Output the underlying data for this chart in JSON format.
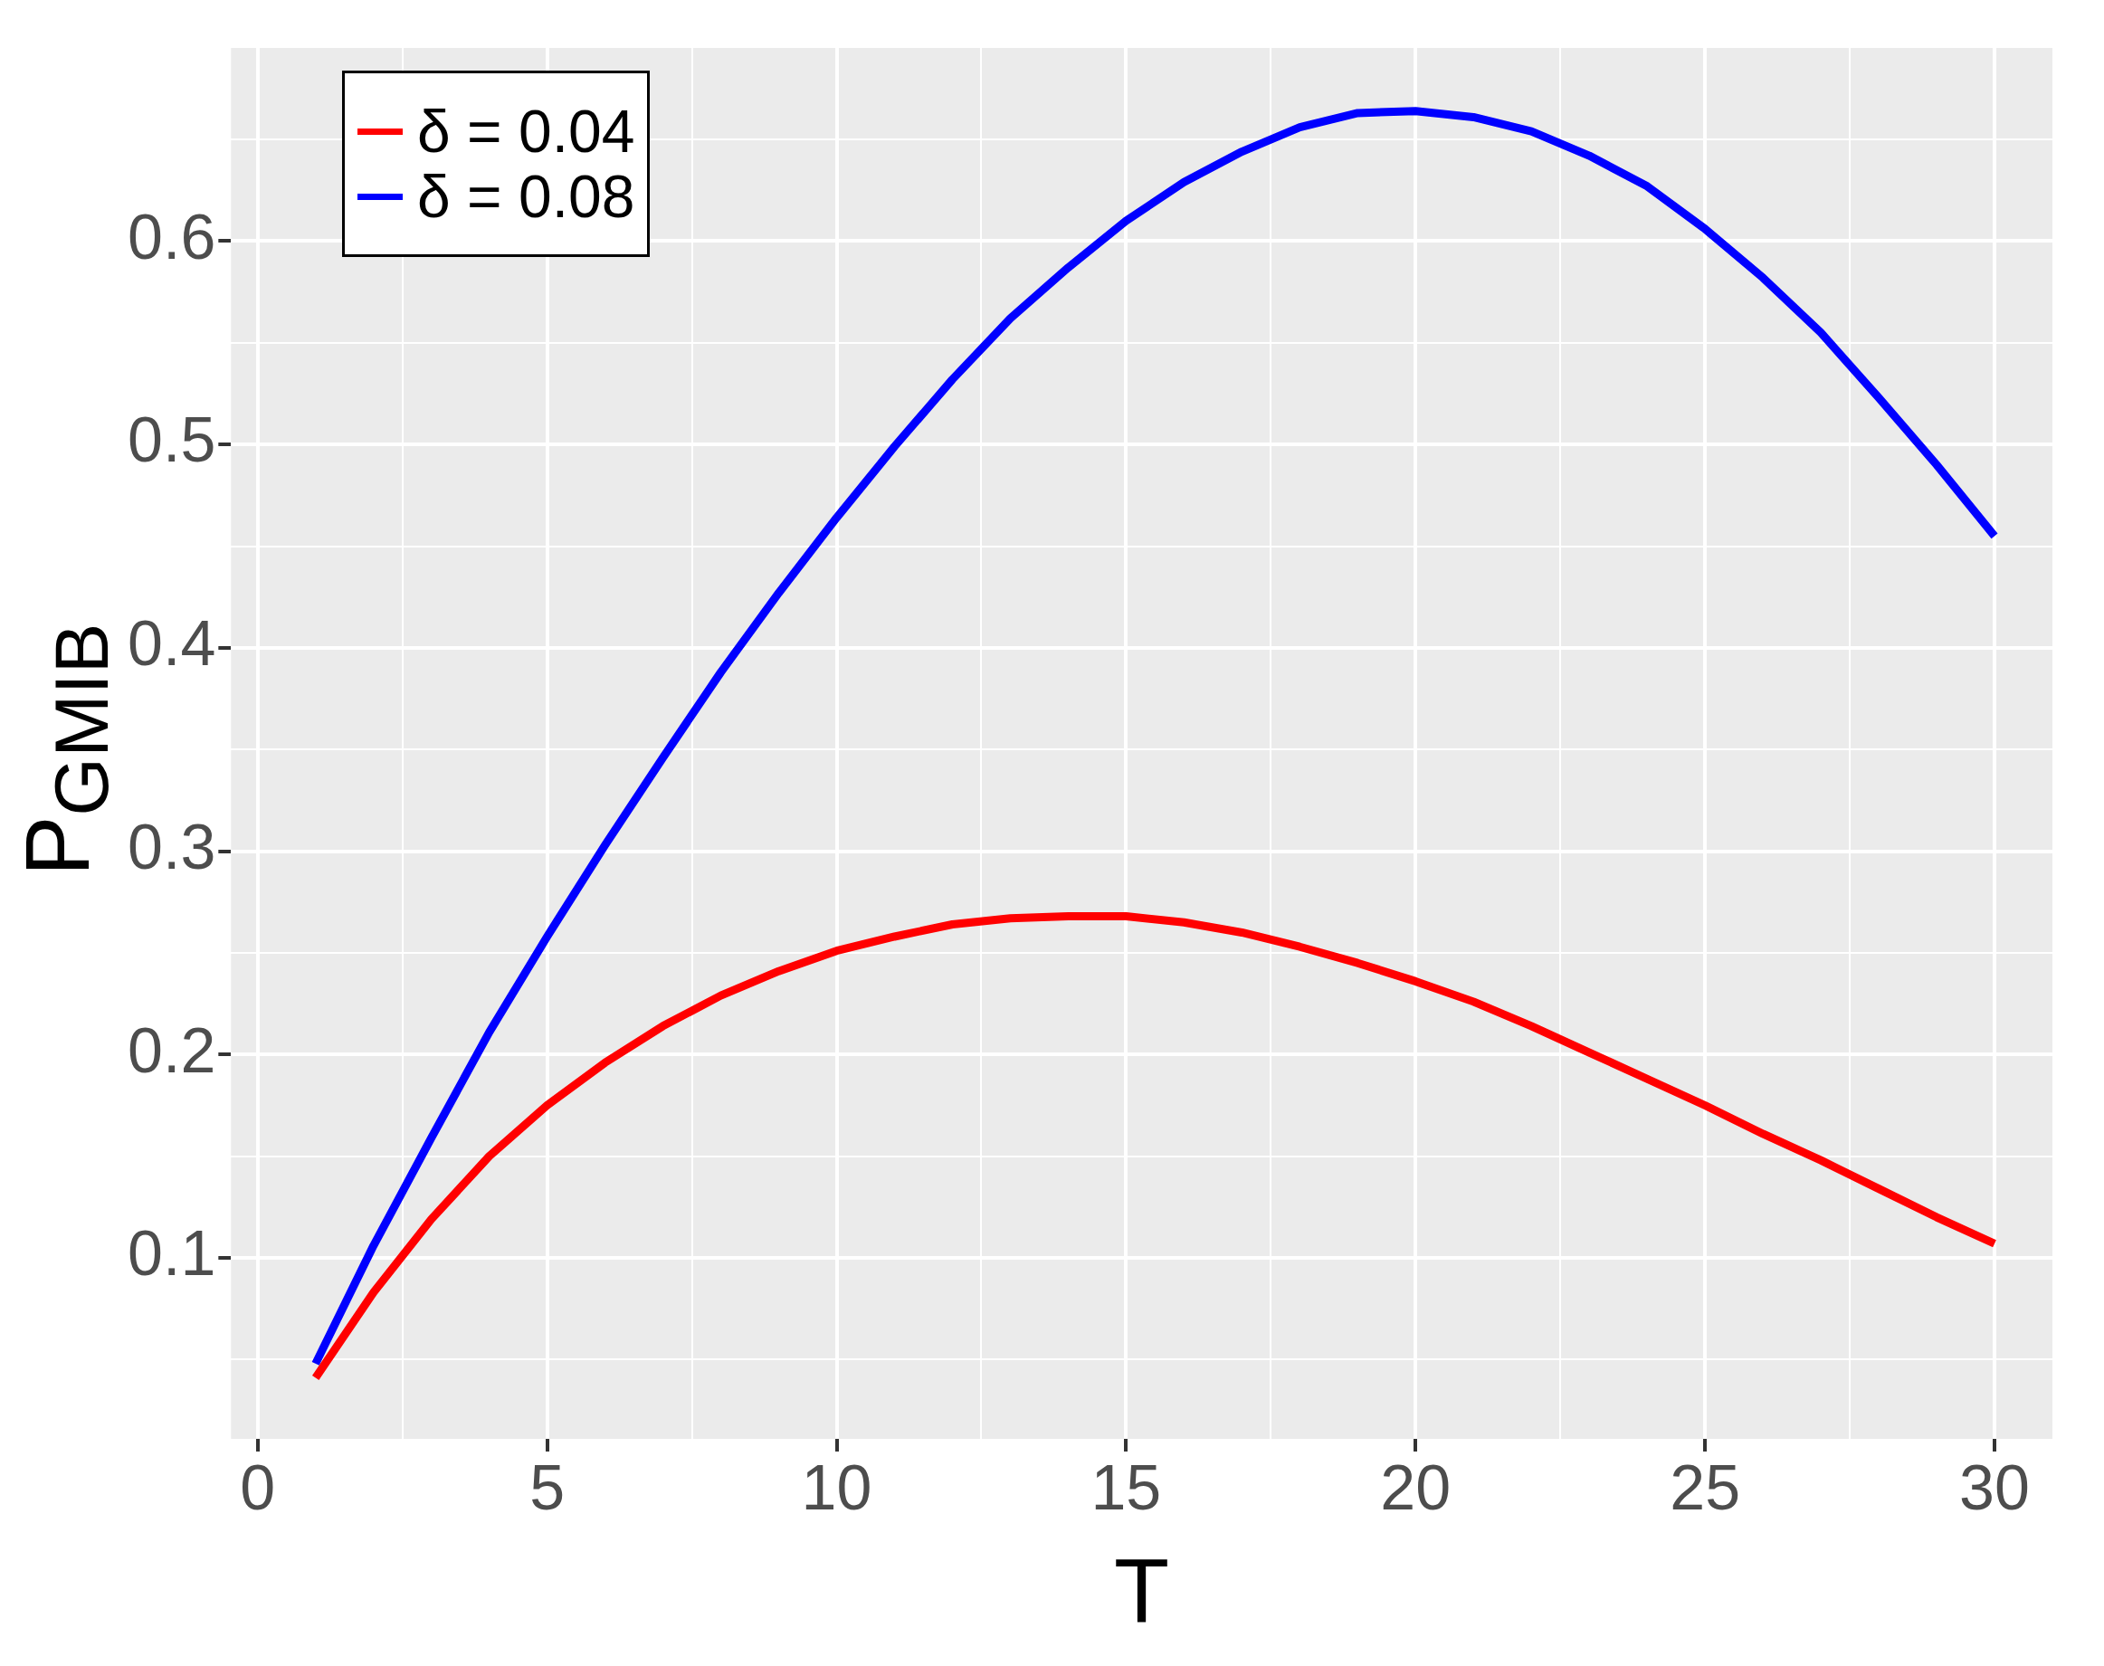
{
  "chart_data": {
    "type": "line",
    "xlabel": "T",
    "ylabel": "P$_{GMIB}$",
    "legend": "top left",
    "grid": true,
    "x": [
      1,
      2,
      3,
      4,
      5,
      6,
      7,
      8,
      9,
      10,
      11,
      12,
      13,
      14,
      15,
      16,
      17,
      18,
      19,
      20,
      21,
      22,
      23,
      24,
      25,
      26,
      27,
      28,
      29,
      30
    ],
    "xlim": [
      -0.46,
      31
    ],
    "xticks": [
      0,
      {
        "value": 2.5,
        "label": null
      },
      5,
      {
        "value": 7.5,
        "label": null
      },
      10,
      {
        "value": 12.5,
        "label": null
      },
      15,
      {
        "value": 17.5,
        "label": null
      },
      20,
      {
        "value": 22.5,
        "label": null
      },
      25,
      {
        "value": 27.5,
        "label": null
      },
      30
    ],
    "ylim": [
      0.011,
      0.695
    ],
    "yticks": [
      {
        "value": 0.05,
        "label": null
      },
      0.1,
      {
        "value": 0.15,
        "label": null
      },
      0.2,
      {
        "value": 0.25,
        "label": null
      },
      0.3,
      {
        "value": 0.35,
        "label": null
      },
      0.4,
      {
        "value": 0.45,
        "label": null
      },
      0.5,
      {
        "value": 0.55,
        "label": null
      },
      0.6,
      {
        "value": 0.65,
        "label": null
      }
    ],
    "series": [
      {
        "name": "δ = 0.04",
        "color": "#ff0000",
        "values": [
          0.041,
          0.083,
          0.119,
          0.15,
          0.175,
          0.196,
          0.214,
          0.229,
          0.241,
          0.251,
          0.258,
          0.264,
          0.267,
          0.268,
          0.268,
          0.265,
          0.26,
          0.253,
          0.245,
          0.236,
          0.226,
          0.214,
          0.201,
          0.188,
          0.175,
          0.161,
          0.148,
          0.134,
          0.12,
          0.107
        ]
      },
      {
        "name": "δ = 0.08",
        "color": "#0000ff",
        "values": [
          0.048,
          0.106,
          0.159,
          0.211,
          0.258,
          0.303,
          0.346,
          0.388,
          0.427,
          0.464,
          0.499,
          0.532,
          0.562,
          0.587,
          0.61,
          0.629,
          0.644,
          0.656,
          0.663,
          0.664,
          0.661,
          0.654,
          0.642,
          0.627,
          0.606,
          0.582,
          0.555,
          0.523,
          0.49,
          0.455
        ]
      }
    ]
  }
}
